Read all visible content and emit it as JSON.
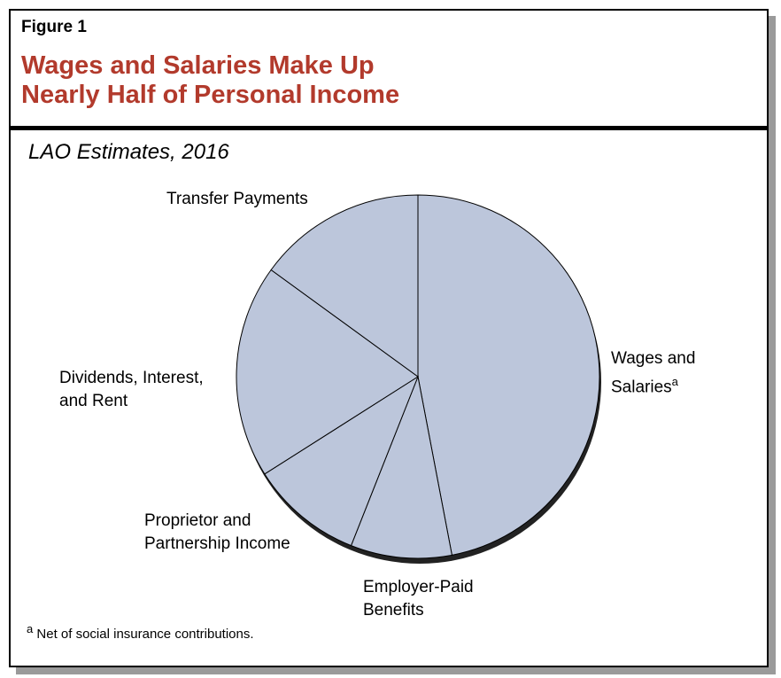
{
  "chart_data": {
    "type": "pie",
    "figure_label": "Figure 1",
    "title": "Wages and Salaries Make Up Nearly Half of Personal Income",
    "subtitle": "LAO Estimates, 2016",
    "categories": [
      "Wages and Salaries",
      "Employer-Paid Benefits",
      "Proprietor and Partnership Income",
      "Dividends, Interest, and Rent",
      "Transfer Payments"
    ],
    "values": [
      47,
      9,
      10,
      19,
      15
    ],
    "color": "#bcc6db",
    "footnote": {
      "marker": "a",
      "text": "Net of social insurance contributions."
    }
  }
}
